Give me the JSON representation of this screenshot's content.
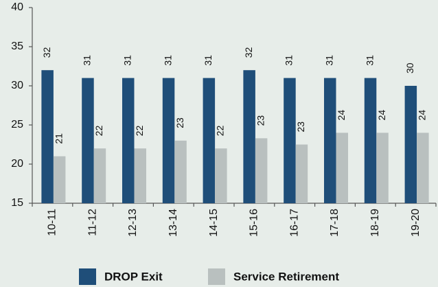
{
  "chart_data": {
    "type": "bar",
    "categories": [
      "10-11",
      "11-12",
      "12-13",
      "13-14",
      "14-15",
      "15-16",
      "16-17",
      "17-18",
      "18-19",
      "19-20"
    ],
    "series": [
      {
        "name": "DROP Exit",
        "color": "#1f4e79",
        "values": [
          32,
          31,
          31,
          31,
          31,
          32,
          31,
          31,
          31,
          30
        ]
      },
      {
        "name": "Service Retirement",
        "color": "#b9c0bf",
        "values": [
          21,
          22,
          22,
          23,
          22,
          23.3,
          22.5,
          24,
          24,
          24
        ],
        "value_labels": [
          "21",
          "22",
          "22",
          "23",
          "22",
          "23",
          "23",
          "24",
          "24",
          "24"
        ]
      }
    ],
    "ylim": [
      15,
      40
    ],
    "yticks": [
      15,
      20,
      25,
      30,
      35,
      40
    ],
    "legend": "bottom"
  }
}
